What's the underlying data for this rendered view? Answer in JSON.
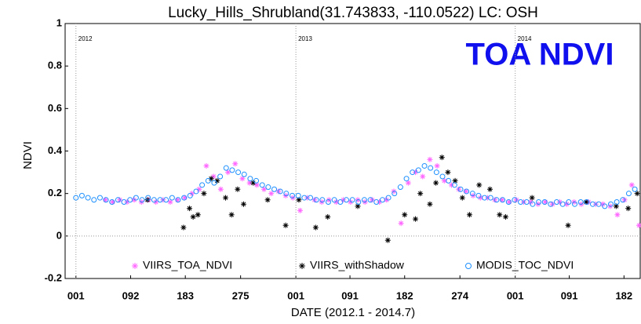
{
  "chart_data": {
    "type": "scatter",
    "title": "Lucky_Hills_Shrubland(31.743833, -110.0522) LC: OSH",
    "annotation": "TOA NDVI",
    "x_label": "DATE (2012.1 - 2014.7)",
    "y_label": "NDVI",
    "xlim": [
      -17,
      940
    ],
    "ylim": [
      -0.2,
      1
    ],
    "xticks": [
      {
        "value": 1,
        "label": "001"
      },
      {
        "value": 92,
        "label": "092"
      },
      {
        "value": 183,
        "label": "183"
      },
      {
        "value": 275,
        "label": "275"
      },
      {
        "value": 367,
        "label": "001"
      },
      {
        "value": 457,
        "label": "091"
      },
      {
        "value": 548,
        "label": "182"
      },
      {
        "value": 640,
        "label": "274"
      },
      {
        "value": 732,
        "label": "001"
      },
      {
        "value": 822,
        "label": "091"
      },
      {
        "value": 913,
        "label": "182"
      }
    ],
    "yticks": [
      -0.2,
      0,
      0.2,
      0.4,
      0.6,
      0.8,
      1
    ],
    "year_lines": [
      {
        "value": 1,
        "label": "2012"
      },
      {
        "value": 367,
        "label": "2013"
      },
      {
        "value": 732,
        "label": "2014"
      }
    ],
    "zero_line": true,
    "legend": "bottom",
    "series": [
      {
        "name": "VIIRS_TOA_NDVI",
        "color": "#ff66ff",
        "marker": "asterisk",
        "x": [
          50,
          62,
          74,
          86,
          98,
          110,
          122,
          134,
          146,
          158,
          170,
          182,
          194,
          206,
          218,
          230,
          242,
          254,
          266,
          278,
          290,
          302,
          314,
          326,
          338,
          350,
          362,
          374,
          386,
          398,
          410,
          422,
          434,
          446,
          458,
          470,
          482,
          494,
          506,
          518,
          530,
          542,
          554,
          566,
          578,
          590,
          602,
          614,
          626,
          638,
          650,
          662,
          674,
          686,
          698,
          710,
          722,
          734,
          746,
          758,
          770,
          782,
          794,
          806,
          818,
          830,
          842,
          854,
          866,
          878,
          890,
          902,
          914,
          926,
          938
        ],
        "values": [
          0.17,
          0.16,
          0.17,
          0.16,
          0.17,
          0.16,
          0.17,
          0.16,
          0.17,
          0.16,
          0.17,
          0.18,
          0.2,
          0.22,
          0.33,
          0.28,
          0.22,
          0.3,
          0.34,
          0.27,
          0.25,
          0.24,
          0.22,
          0.2,
          0.21,
          0.19,
          0.18,
          0.12,
          0.18,
          0.17,
          0.16,
          0.17,
          0.16,
          0.17,
          0.16,
          0.17,
          0.16,
          0.17,
          0.16,
          0.17,
          0.21,
          0.06,
          0.25,
          0.3,
          0.28,
          0.36,
          0.33,
          0.26,
          0.24,
          0.22,
          0.21,
          0.19,
          0.18,
          0.18,
          0.17,
          0.17,
          0.16,
          0.17,
          0.16,
          0.16,
          0.15,
          0.16,
          0.15,
          0.16,
          0.15,
          0.16,
          0.15,
          0.16,
          0.15,
          0.15,
          0.14,
          0.1,
          0.17,
          0.24,
          0.05
        ]
      },
      {
        "name": "VIIRS_withShadow",
        "color": "#000000",
        "marker": "asterisk",
        "x": [
          120,
          180,
          190,
          196,
          204,
          214,
          226,
          236,
          250,
          260,
          270,
          280,
          296,
          320,
          350,
          372,
          400,
          420,
          470,
          520,
          548,
          566,
          574,
          590,
          600,
          610,
          620,
          632,
          644,
          656,
          672,
          690,
          706,
          716,
          760,
          820,
          850,
          900,
          920,
          935
        ],
        "values": [
          0.17,
          0.04,
          0.13,
          0.09,
          0.1,
          0.2,
          0.27,
          0.26,
          0.18,
          0.1,
          0.22,
          0.15,
          0.25,
          0.17,
          0.05,
          0.17,
          0.04,
          0.09,
          0.14,
          -0.02,
          0.1,
          0.08,
          0.2,
          0.15,
          0.25,
          0.37,
          0.3,
          0.26,
          0.18,
          0.1,
          0.24,
          0.22,
          0.1,
          0.09,
          0.18,
          0.05,
          0.16,
          0.14,
          0.13,
          0.2
        ]
      },
      {
        "name": "MODIS_TOC_NDVI",
        "color": "#1e90ff",
        "marker": "circle",
        "x": [
          1,
          11,
          21,
          31,
          41,
          51,
          61,
          71,
          81,
          91,
          101,
          111,
          121,
          131,
          141,
          151,
          161,
          171,
          181,
          191,
          201,
          211,
          221,
          231,
          241,
          251,
          261,
          271,
          281,
          291,
          301,
          311,
          321,
          331,
          341,
          351,
          361,
          371,
          381,
          391,
          401,
          411,
          421,
          431,
          441,
          451,
          461,
          471,
          481,
          491,
          501,
          511,
          521,
          531,
          541,
          551,
          561,
          571,
          581,
          591,
          601,
          611,
          621,
          631,
          641,
          651,
          661,
          671,
          681,
          691,
          701,
          711,
          721,
          731,
          741,
          751,
          761,
          771,
          781,
          791,
          801,
          811,
          821,
          831,
          841,
          851,
          861,
          871,
          881,
          891,
          901,
          911,
          921,
          931
        ],
        "values": [
          0.18,
          0.19,
          0.18,
          0.17,
          0.18,
          0.17,
          0.16,
          0.17,
          0.16,
          0.17,
          0.18,
          0.17,
          0.18,
          0.17,
          0.17,
          0.17,
          0.18,
          0.17,
          0.18,
          0.19,
          0.21,
          0.24,
          0.26,
          0.25,
          0.28,
          0.32,
          0.31,
          0.3,
          0.29,
          0.27,
          0.26,
          0.24,
          0.23,
          0.22,
          0.21,
          0.2,
          0.19,
          0.19,
          0.18,
          0.18,
          0.17,
          0.17,
          0.16,
          0.17,
          0.16,
          0.17,
          0.17,
          0.16,
          0.17,
          0.17,
          0.16,
          0.17,
          0.18,
          0.2,
          0.23,
          0.27,
          0.3,
          0.31,
          0.33,
          0.32,
          0.3,
          0.28,
          0.26,
          0.24,
          0.22,
          0.21,
          0.2,
          0.19,
          0.18,
          0.18,
          0.17,
          0.17,
          0.16,
          0.17,
          0.16,
          0.16,
          0.15,
          0.16,
          0.16,
          0.15,
          0.16,
          0.15,
          0.16,
          0.15,
          0.16,
          0.16,
          0.15,
          0.15,
          0.14,
          0.15,
          0.16,
          0.17,
          0.2,
          0.22
        ]
      }
    ]
  }
}
